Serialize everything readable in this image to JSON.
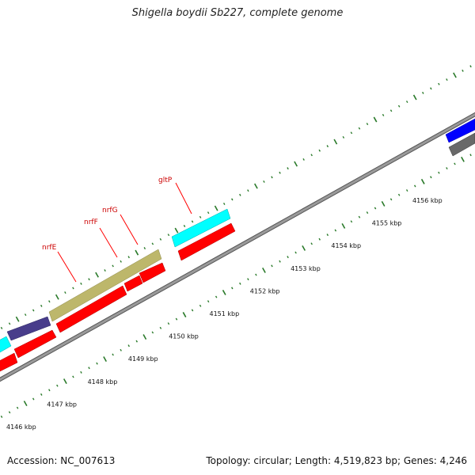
{
  "title": "Shigella boydii Sb227, complete genome",
  "footer": {
    "accession": "Accession: NC_007613",
    "summary": "Topology: circular; Length: 4,519,823 bp; Genes: 4,246"
  },
  "colors": {
    "backbone": "#8a8a8a",
    "tick": "#2a7a2a",
    "gene_red": "#ff0000",
    "gene_cyan": "#00ffff",
    "gene_khaki": "#bdb76b",
    "gene_navy": "#483d8b",
    "gene_blue": "#0000ff",
    "gene_gray": "#696969",
    "label": "#cc0000"
  },
  "ruler_labels": [
    "4146 kbp",
    "4147 kbp",
    "4148 kbp",
    "4149 kbp",
    "4150 kbp",
    "4151 kbp",
    "4152 kbp",
    "4153 kbp",
    "4154 kbp",
    "4155 kbp",
    "4156 kbp"
  ],
  "gene_labels": [
    {
      "name": "gltP"
    },
    {
      "name": "nrfG"
    },
    {
      "name": "nrfF"
    },
    {
      "name": "nrfE"
    }
  ]
}
